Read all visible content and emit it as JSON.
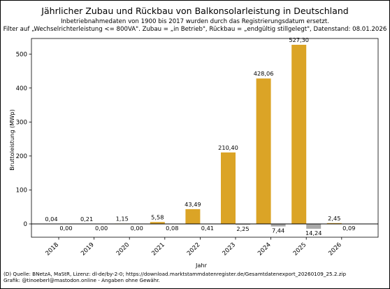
{
  "title": "Jährlicher Zubau und Rückbau von Balkonsolarleistung in Deutschland",
  "subtitle_1": "Inbetriebnahmedaten von 1900 bis 2017 wurden durch das Registrierungsdatum ersetzt.",
  "subtitle_2": "Filter auf „Wechselrichterleistung <= 800VA\". Zubau = „in Betrieb\", Rückbau = „endgültig stillgelegt\", Datenstand: 08.01.2026",
  "footer_1": "(D) Quelle: BNetzA, MaStR, Lizenz: dl-de/by-2-0; https://download.marktstammdatenregister.de/Gesamtdatenexport_20260109_25.2.zip",
  "footer_2": "Grafik: @tinoeberl@mastodon.online - Angaben ohne Gewähr.",
  "chart_data": {
    "type": "bar",
    "xlabel": "Jahr",
    "ylabel": "Bruttoleistung (MWp)",
    "ylim": [
      -10,
      545
    ],
    "yticks": [
      0,
      100,
      200,
      300,
      400,
      500
    ],
    "grid": false,
    "legend": "none",
    "categories": [
      "2018",
      "2019",
      "2020",
      "2021",
      "2022",
      "2023",
      "2024",
      "2025",
      "2026"
    ],
    "series": [
      {
        "role": "zubau",
        "color": "#dba426",
        "values": [
          0.04,
          0.21,
          1.15,
          5.58,
          43.49,
          210.4,
          428.06,
          527.3,
          2.45
        ],
        "labels": [
          "0,04",
          "0,21",
          "1,15",
          "5,58",
          "43,49",
          "210,40",
          "428,06",
          "527,30",
          "2,45"
        ]
      },
      {
        "role": "rueckbau",
        "color": "#a9a9a9",
        "values": [
          0.0,
          0.0,
          0.0,
          0.08,
          0.41,
          2.25,
          7.44,
          14.24,
          0.09
        ],
        "labels": [
          "0,00",
          "0,00",
          "0,00",
          "0,08",
          "0,41",
          "2,25",
          "7,44",
          "14,24",
          "0,09"
        ]
      }
    ]
  }
}
